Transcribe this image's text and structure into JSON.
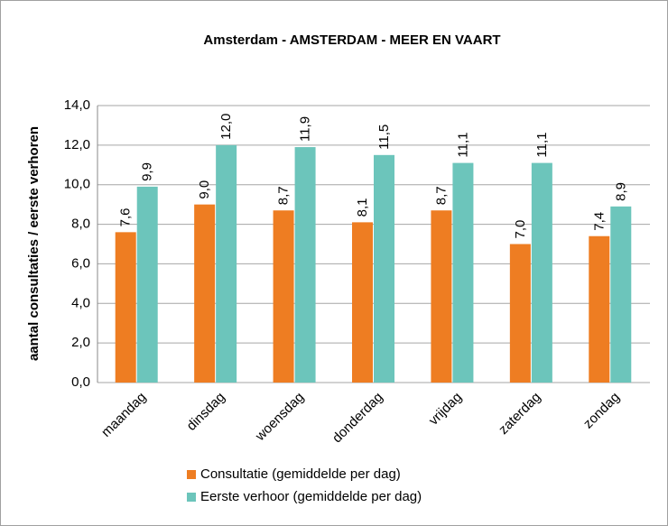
{
  "chart_data": {
    "type": "bar",
    "title": "Amsterdam - AMSTERDAM - MEER EN VAART",
    "ylabel": "aantal consultaties / eerste verhoren",
    "categories": [
      "maandag",
      "dinsdag",
      "woensdag",
      "donderdag",
      "vrijdag",
      "zaterdag",
      "zondag"
    ],
    "series": [
      {
        "name": "Consultatie (gemiddelde per dag)",
        "color": "#ee7d22",
        "values": [
          7.6,
          9.0,
          8.7,
          8.1,
          8.7,
          7.0,
          7.4
        ],
        "value_labels": [
          "7,6",
          "9,0",
          "8,7",
          "8,1",
          "8,7",
          "7,0",
          "7,4"
        ]
      },
      {
        "name": "Eerste verhoor (gemiddelde per dag)",
        "color": "#6cc5bb",
        "values": [
          9.9,
          12.0,
          11.9,
          11.5,
          11.1,
          11.1,
          8.9
        ],
        "value_labels": [
          "9,9",
          "12,0",
          "11,9",
          "11,5",
          "11,1",
          "11,1",
          "8,9"
        ]
      }
    ],
    "ylim": [
      0,
      14
    ],
    "yticks": [
      {
        "value": 0,
        "label": "0,0"
      },
      {
        "value": 2,
        "label": "2,0"
      },
      {
        "value": 4,
        "label": "4,0"
      },
      {
        "value": 6,
        "label": "6,0"
      },
      {
        "value": 8,
        "label": "8,0"
      },
      {
        "value": 10,
        "label": "10,0"
      },
      {
        "value": 12,
        "label": "12,0"
      },
      {
        "value": 14,
        "label": "14,0"
      }
    ],
    "grid": true,
    "legend": "bottom"
  }
}
